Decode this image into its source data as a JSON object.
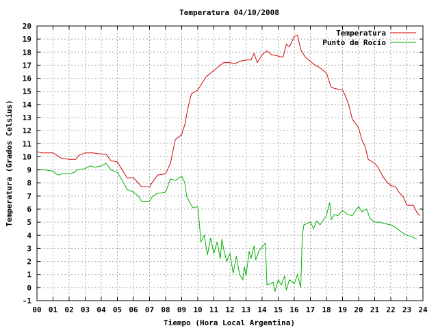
{
  "chart_data": {
    "type": "line",
    "title": "Temperatura 04/10/2008",
    "xlabel": "Tiempo (Hora Local Argentina)",
    "ylabel": "Temperatura (Grados Celsius)",
    "xlim": [
      0,
      24
    ],
    "ylim": [
      -1,
      20
    ],
    "x_ticks": [
      "00",
      "01",
      "02",
      "03",
      "04",
      "05",
      "06",
      "07",
      "08",
      "09",
      "10",
      "11",
      "12",
      "13",
      "14",
      "15",
      "16",
      "17",
      "18",
      "19",
      "20",
      "21",
      "22",
      "23",
      "24"
    ],
    "y_ticks": [
      "-1",
      "0",
      "1",
      "2",
      "3",
      "4",
      "5",
      "6",
      "7",
      "8",
      "9",
      "10",
      "11",
      "12",
      "13",
      "14",
      "15",
      "16",
      "17",
      "18",
      "19",
      "20"
    ],
    "grid": true,
    "legend_position": "top-right",
    "series": [
      {
        "name": "Temperatura",
        "color": "#d00000",
        "points": [
          [
            0,
            10.4
          ],
          [
            0.3,
            10.3
          ],
          [
            1,
            10.3
          ],
          [
            1.5,
            9.9
          ],
          [
            2,
            9.8
          ],
          [
            2.4,
            9.8
          ],
          [
            2.6,
            10.1
          ],
          [
            3,
            10.3
          ],
          [
            3.5,
            10.3
          ],
          [
            4,
            10.2
          ],
          [
            4.3,
            10.2
          ],
          [
            4.6,
            9.7
          ],
          [
            5,
            9.6
          ],
          [
            5.3,
            9.0
          ],
          [
            5.6,
            8.4
          ],
          [
            6,
            8.4
          ],
          [
            6.3,
            8.0
          ],
          [
            6.5,
            7.7
          ],
          [
            7,
            7.7
          ],
          [
            7.2,
            8.1
          ],
          [
            7.5,
            8.6
          ],
          [
            8,
            8.7
          ],
          [
            8.3,
            9.5
          ],
          [
            8.6,
            11.3
          ],
          [
            9,
            11.7
          ],
          [
            9.2,
            12.5
          ],
          [
            9.4,
            13.8
          ],
          [
            9.6,
            14.8
          ],
          [
            10,
            15.1
          ],
          [
            10.2,
            15.5
          ],
          [
            10.5,
            16.1
          ],
          [
            11,
            16.6
          ],
          [
            11.3,
            16.9
          ],
          [
            11.6,
            17.2
          ],
          [
            12,
            17.2
          ],
          [
            12.3,
            17.1
          ],
          [
            12.6,
            17.3
          ],
          [
            13,
            17.4
          ],
          [
            13.3,
            17.4
          ],
          [
            13.5,
            17.9
          ],
          [
            13.7,
            17.2
          ],
          [
            14,
            17.8
          ],
          [
            14.3,
            18.1
          ],
          [
            14.6,
            17.8
          ],
          [
            15,
            17.7
          ],
          [
            15.3,
            17.6
          ],
          [
            15.5,
            18.6
          ],
          [
            15.7,
            18.4
          ],
          [
            16,
            19.2
          ],
          [
            16.2,
            19.3
          ],
          [
            16.4,
            18.2
          ],
          [
            16.7,
            17.6
          ],
          [
            17,
            17.3
          ],
          [
            17.3,
            17.0
          ],
          [
            17.6,
            16.8
          ],
          [
            18,
            16.4
          ],
          [
            18.3,
            15.3
          ],
          [
            18.6,
            15.2
          ],
          [
            19,
            15.1
          ],
          [
            19.2,
            14.6
          ],
          [
            19.4,
            13.9
          ],
          [
            19.6,
            12.9
          ],
          [
            20,
            12.2
          ],
          [
            20.2,
            11.3
          ],
          [
            20.4,
            10.8
          ],
          [
            20.6,
            9.8
          ],
          [
            21,
            9.5
          ],
          [
            21.2,
            9.2
          ],
          [
            21.5,
            8.5
          ],
          [
            21.8,
            8.0
          ],
          [
            22,
            7.8
          ],
          [
            22.3,
            7.7
          ],
          [
            22.5,
            7.3
          ],
          [
            22.8,
            6.9
          ],
          [
            23,
            6.3
          ],
          [
            23.4,
            6.3
          ],
          [
            23.6,
            5.8
          ],
          [
            23.8,
            5.5
          ]
        ]
      },
      {
        "name": "Punto de Rocío",
        "color": "#00b000",
        "points": [
          [
            0,
            9.0
          ],
          [
            0.5,
            9.0
          ],
          [
            1,
            8.9
          ],
          [
            1.3,
            8.6
          ],
          [
            1.6,
            8.7
          ],
          [
            2,
            8.7
          ],
          [
            2.3,
            8.8
          ],
          [
            2.5,
            9.0
          ],
          [
            3,
            9.1
          ],
          [
            3.3,
            9.3
          ],
          [
            3.6,
            9.2
          ],
          [
            4,
            9.3
          ],
          [
            4.3,
            9.5
          ],
          [
            4.6,
            9.0
          ],
          [
            5,
            8.8
          ],
          [
            5.3,
            8.2
          ],
          [
            5.6,
            7.5
          ],
          [
            6,
            7.3
          ],
          [
            6.3,
            7.0
          ],
          [
            6.5,
            6.6
          ],
          [
            7,
            6.6
          ],
          [
            7.2,
            7.0
          ],
          [
            7.5,
            7.2
          ],
          [
            8,
            7.3
          ],
          [
            8.3,
            8.3
          ],
          [
            8.6,
            8.2
          ],
          [
            9,
            8.5
          ],
          [
            9.2,
            8.0
          ],
          [
            9.3,
            7.0
          ],
          [
            9.5,
            6.5
          ],
          [
            9.7,
            6.1
          ],
          [
            10,
            6.2
          ],
          [
            10.2,
            3.5
          ],
          [
            10.4,
            4.0
          ],
          [
            10.6,
            2.5
          ],
          [
            10.8,
            3.8
          ],
          [
            11,
            2.6
          ],
          [
            11.2,
            3.5
          ],
          [
            11.4,
            2.2
          ],
          [
            11.5,
            3.7
          ],
          [
            11.6,
            3.0
          ],
          [
            11.8,
            2.0
          ],
          [
            12,
            2.6
          ],
          [
            12.2,
            1.1
          ],
          [
            12.4,
            2.4
          ],
          [
            12.6,
            1.0
          ],
          [
            12.8,
            0.6
          ],
          [
            12.9,
            1.6
          ],
          [
            13,
            0.9
          ],
          [
            13.2,
            2.8
          ],
          [
            13.3,
            2.2
          ],
          [
            13.5,
            3.2
          ],
          [
            13.6,
            2.1
          ],
          [
            13.8,
            2.8
          ],
          [
            14,
            3.1
          ],
          [
            14.2,
            3.4
          ],
          [
            14.3,
            0.2
          ],
          [
            14.5,
            0.3
          ],
          [
            14.7,
            0.4
          ],
          [
            14.8,
            -0.3
          ],
          [
            15,
            0.6
          ],
          [
            15.2,
            0.2
          ],
          [
            15.4,
            0.9
          ],
          [
            15.5,
            -0.2
          ],
          [
            15.7,
            0.6
          ],
          [
            15.9,
            0.4
          ],
          [
            16,
            0.3
          ],
          [
            16.2,
            1.0
          ],
          [
            16.4,
            0.0
          ],
          [
            16.5,
            4.0
          ],
          [
            16.6,
            4.8
          ],
          [
            17,
            5.0
          ],
          [
            17.2,
            4.5
          ],
          [
            17.4,
            5.1
          ],
          [
            17.6,
            4.8
          ],
          [
            18,
            5.5
          ],
          [
            18.2,
            6.5
          ],
          [
            18.3,
            5.2
          ],
          [
            18.5,
            5.6
          ],
          [
            18.7,
            5.5
          ],
          [
            19,
            5.9
          ],
          [
            19.3,
            5.6
          ],
          [
            19.6,
            5.5
          ],
          [
            20,
            6.2
          ],
          [
            20.2,
            5.8
          ],
          [
            20.5,
            6.0
          ],
          [
            20.7,
            5.3
          ],
          [
            21,
            5.0
          ],
          [
            21.3,
            5.0
          ],
          [
            21.6,
            4.9
          ],
          [
            22,
            4.8
          ],
          [
            22.3,
            4.6
          ],
          [
            22.6,
            4.3
          ],
          [
            23,
            4.0
          ],
          [
            23.3,
            3.9
          ],
          [
            23.6,
            3.7
          ]
        ]
      }
    ]
  }
}
